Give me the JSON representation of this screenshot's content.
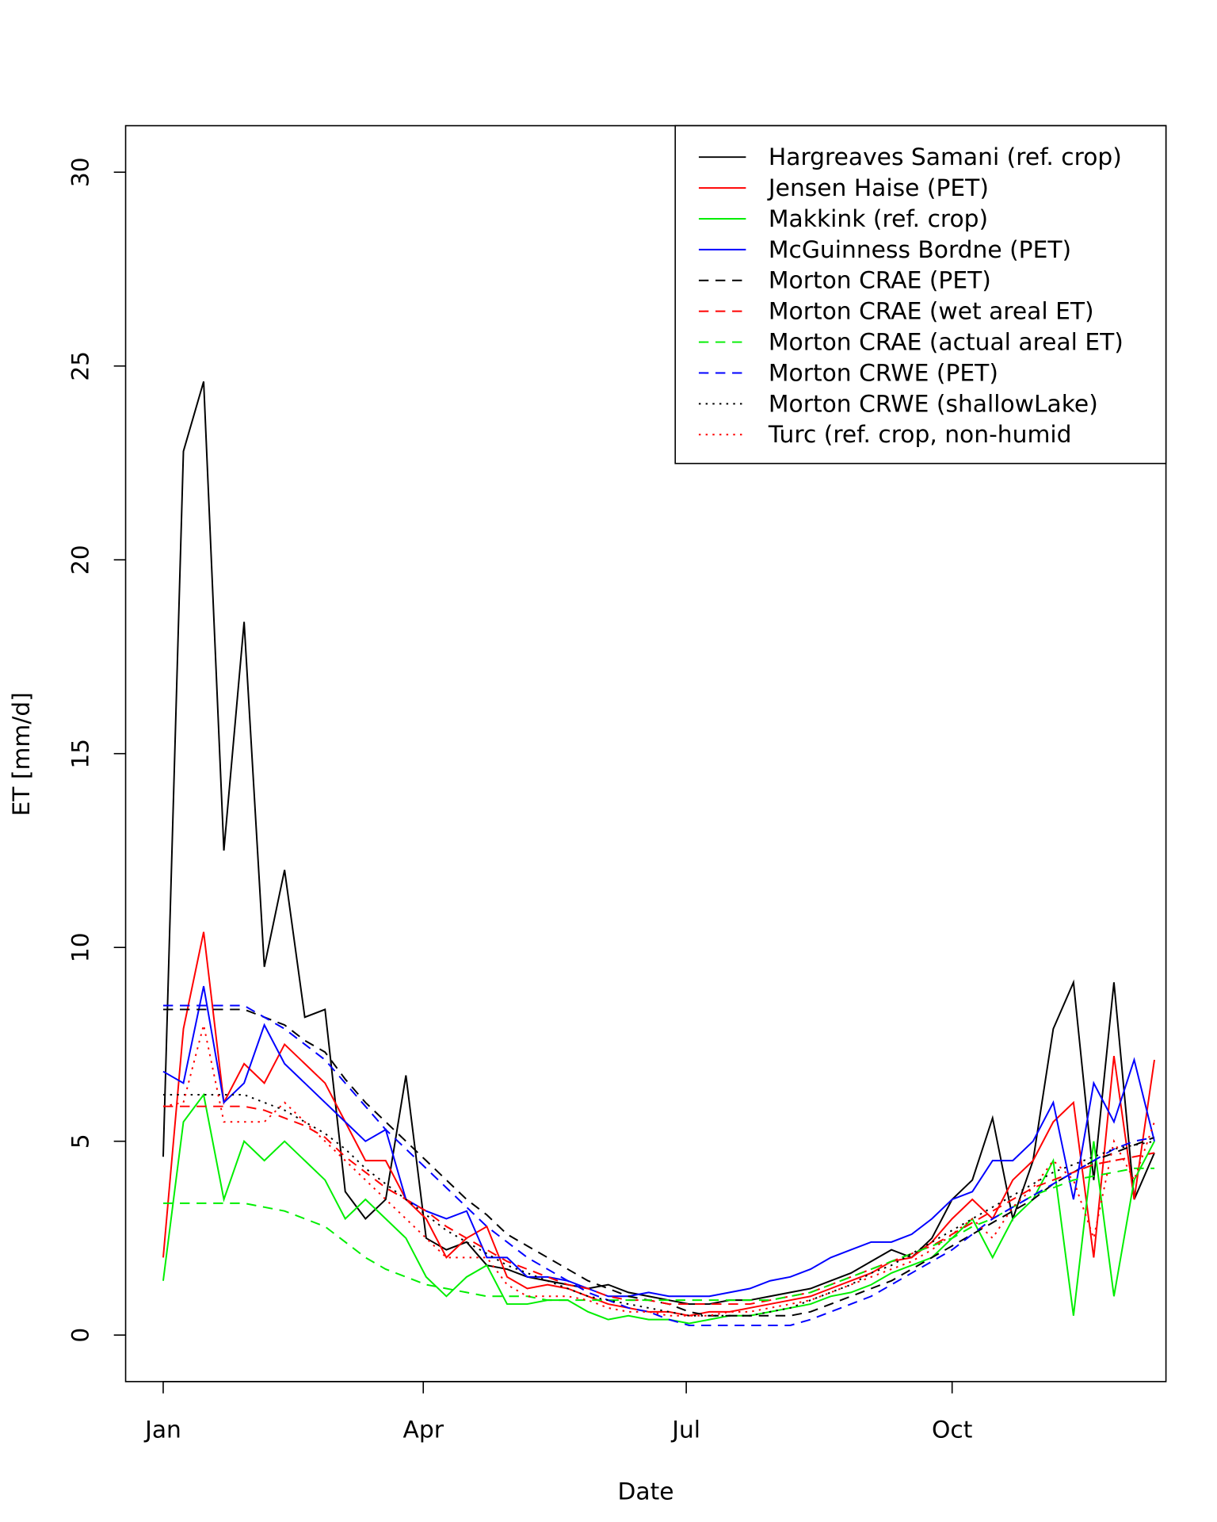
{
  "chart_data": {
    "type": "line",
    "x_label": "Date",
    "y_label": "ET [mm/d]",
    "x": [
      0,
      7,
      14,
      21,
      28,
      35,
      42,
      49,
      56,
      63,
      70,
      77,
      84,
      91,
      98,
      105,
      112,
      119,
      126,
      133,
      140,
      147,
      154,
      161,
      168,
      175,
      182,
      189,
      196,
      203,
      210,
      217,
      224,
      231,
      238,
      245,
      252,
      259,
      266,
      273,
      280,
      287,
      294,
      301,
      308,
      315,
      322,
      329,
      336,
      343
    ],
    "xlim": [
      -13,
      347
    ],
    "xticks": [
      {
        "value": 0,
        "label": "Jan"
      },
      {
        "value": 90,
        "label": "Apr"
      },
      {
        "value": 181,
        "label": "Jul"
      },
      {
        "value": 273,
        "label": "Oct"
      }
    ],
    "ylim": [
      -1.2,
      31.2
    ],
    "yticks": [
      0,
      5,
      10,
      15,
      20,
      25,
      30
    ],
    "legend_position": "topright",
    "series": [
      {
        "name": "Hargreaves Samani (ref. crop)",
        "color": "#000000",
        "dash": "solid",
        "values": [
          4.6,
          22.8,
          24.6,
          12.5,
          18.4,
          9.5,
          12.0,
          8.2,
          8.4,
          3.7,
          3.0,
          3.5,
          6.7,
          2.5,
          2.2,
          2.4,
          1.8,
          1.7,
          1.5,
          1.4,
          1.3,
          1.2,
          1.3,
          1.1,
          1.0,
          0.9,
          0.8,
          0.8,
          0.9,
          0.9,
          1.0,
          1.1,
          1.2,
          1.4,
          1.6,
          1.9,
          2.2,
          2.0,
          2.5,
          3.5,
          4.0,
          5.6,
          3.0,
          4.5,
          7.9,
          9.1,
          4.0,
          9.1,
          3.5,
          4.7
        ]
      },
      {
        "name": "Jensen Haise (PET)",
        "color": "#ff0000",
        "dash": "solid",
        "values": [
          2.0,
          7.9,
          10.4,
          6.0,
          7.0,
          6.5,
          7.5,
          7.0,
          6.5,
          5.5,
          4.5,
          4.5,
          3.5,
          3.0,
          2.0,
          2.5,
          2.8,
          1.5,
          1.2,
          1.3,
          1.2,
          1.0,
          0.8,
          0.7,
          0.6,
          0.6,
          0.5,
          0.6,
          0.6,
          0.7,
          0.8,
          0.9,
          1.0,
          1.2,
          1.4,
          1.6,
          1.9,
          2.0,
          2.4,
          3.0,
          3.5,
          3.0,
          4.0,
          4.5,
          5.5,
          6.0,
          2.0,
          7.2,
          3.5,
          7.1
        ]
      },
      {
        "name": "Makkink (ref. crop)",
        "color": "#00ee00",
        "dash": "solid",
        "values": [
          1.4,
          5.5,
          6.2,
          3.5,
          5.0,
          4.5,
          5.0,
          4.5,
          4.0,
          3.0,
          3.5,
          3.0,
          2.5,
          1.5,
          1.0,
          1.5,
          1.8,
          0.8,
          0.8,
          0.9,
          0.9,
          0.6,
          0.4,
          0.5,
          0.4,
          0.4,
          0.3,
          0.4,
          0.5,
          0.5,
          0.6,
          0.7,
          0.8,
          1.0,
          1.1,
          1.3,
          1.6,
          1.8,
          2.0,
          2.5,
          3.0,
          2.0,
          3.0,
          3.5,
          4.5,
          0.5,
          5.0,
          1.0,
          4.0,
          5.0
        ]
      },
      {
        "name": "McGuinness Bordne (PET)",
        "color": "#0000ff",
        "dash": "solid",
        "values": [
          6.8,
          6.5,
          9.0,
          6.0,
          6.5,
          8.0,
          7.0,
          6.5,
          6.0,
          5.5,
          5.0,
          5.3,
          3.5,
          3.2,
          3.0,
          3.2,
          2.0,
          2.0,
          1.5,
          1.5,
          1.4,
          1.2,
          1.0,
          1.0,
          1.1,
          1.0,
          1.0,
          1.0,
          1.1,
          1.2,
          1.4,
          1.5,
          1.7,
          2.0,
          2.2,
          2.4,
          2.4,
          2.6,
          3.0,
          3.5,
          3.7,
          4.5,
          4.5,
          5.0,
          6.0,
          3.5,
          6.5,
          5.5,
          7.1,
          5.0
        ]
      },
      {
        "name": "Morton CRAE (PET)",
        "color": "#000000",
        "dash": "dashed",
        "values": [
          8.4,
          8.4,
          8.4,
          8.4,
          8.4,
          8.2,
          8.0,
          7.6,
          7.3,
          6.6,
          6.0,
          5.5,
          5.0,
          4.5,
          4.0,
          3.5,
          3.1,
          2.6,
          2.3,
          2.0,
          1.7,
          1.4,
          1.2,
          1.0,
          0.9,
          0.8,
          0.6,
          0.5,
          0.5,
          0.5,
          0.5,
          0.5,
          0.6,
          0.8,
          1.0,
          1.2,
          1.4,
          1.7,
          2.0,
          2.3,
          2.6,
          2.9,
          3.2,
          3.5,
          3.9,
          4.2,
          4.5,
          4.7,
          4.9,
          5.1
        ]
      },
      {
        "name": "Morton CRAE (wet areal ET)",
        "color": "#ff0000",
        "dash": "dashed",
        "values": [
          5.9,
          5.9,
          5.9,
          5.9,
          5.9,
          5.8,
          5.6,
          5.4,
          5.1,
          4.6,
          4.2,
          3.8,
          3.5,
          3.2,
          2.8,
          2.5,
          2.2,
          1.9,
          1.7,
          1.5,
          1.3,
          1.2,
          1.0,
          0.9,
          0.9,
          0.8,
          0.8,
          0.8,
          0.8,
          0.8,
          0.9,
          1.0,
          1.1,
          1.3,
          1.5,
          1.7,
          1.9,
          2.1,
          2.3,
          2.6,
          2.9,
          3.2,
          3.5,
          3.8,
          4.0,
          4.2,
          4.4,
          4.5,
          4.6,
          4.7
        ]
      },
      {
        "name": "Morton CRAE (actual areal ET)",
        "color": "#00ee00",
        "dash": "dashed",
        "values": [
          3.4,
          3.4,
          3.4,
          3.4,
          3.4,
          3.3,
          3.2,
          3.0,
          2.8,
          2.4,
          2.0,
          1.7,
          1.5,
          1.3,
          1.2,
          1.1,
          1.0,
          1.0,
          1.0,
          0.9,
          0.9,
          0.9,
          0.9,
          0.9,
          0.9,
          0.9,
          0.9,
          0.9,
          0.9,
          0.9,
          0.9,
          1.0,
          1.1,
          1.3,
          1.5,
          1.7,
          1.9,
          2.1,
          2.3,
          2.5,
          2.8,
          3.0,
          3.3,
          3.6,
          3.8,
          4.0,
          4.1,
          4.2,
          4.3,
          4.3
        ]
      },
      {
        "name": "Morton CRWE (PET)",
        "color": "#0000ff",
        "dash": "dashed",
        "values": [
          8.5,
          8.5,
          8.5,
          8.5,
          8.5,
          8.2,
          7.9,
          7.5,
          7.1,
          6.5,
          5.9,
          5.3,
          4.8,
          4.3,
          3.8,
          3.3,
          2.8,
          2.4,
          2.0,
          1.7,
          1.4,
          1.1,
          0.9,
          0.7,
          0.6,
          0.4,
          0.25,
          0.25,
          0.25,
          0.25,
          0.25,
          0.25,
          0.4,
          0.6,
          0.8,
          1.0,
          1.3,
          1.6,
          1.9,
          2.2,
          2.6,
          3.0,
          3.3,
          3.6,
          3.9,
          4.2,
          4.5,
          4.8,
          5.0,
          5.1
        ]
      },
      {
        "name": "Morton CRWE (shallowLake)",
        "color": "#000000",
        "dash": "dotted",
        "values": [
          6.2,
          6.2,
          6.2,
          6.2,
          6.2,
          6.0,
          5.8,
          5.5,
          5.2,
          4.8,
          4.3,
          3.9,
          3.5,
          3.1,
          2.7,
          2.4,
          2.1,
          1.8,
          1.6,
          1.4,
          1.2,
          1.0,
          0.9,
          0.8,
          0.7,
          0.6,
          0.5,
          0.5,
          0.5,
          0.5,
          0.6,
          0.7,
          0.9,
          1.1,
          1.3,
          1.6,
          1.8,
          2.1,
          2.4,
          2.7,
          3.0,
          3.3,
          3.6,
          3.9,
          4.2,
          4.4,
          4.6,
          4.8,
          4.9,
          5.0
        ]
      },
      {
        "name": "Turc (ref. crop, non-humid",
        "color": "#ff0000",
        "dash": "dotted",
        "values": [
          5.9,
          6.0,
          8.0,
          5.5,
          5.5,
          5.5,
          6.0,
          5.5,
          5.0,
          4.5,
          4.0,
          3.5,
          3.0,
          2.5,
          2.0,
          2.0,
          2.0,
          1.3,
          1.0,
          1.0,
          1.0,
          0.9,
          0.7,
          0.6,
          0.6,
          0.5,
          0.5,
          0.5,
          0.6,
          0.6,
          0.7,
          0.8,
          0.9,
          1.1,
          1.3,
          1.5,
          1.7,
          1.9,
          2.2,
          2.6,
          3.0,
          2.5,
          3.3,
          3.8,
          4.5,
          4.0,
          2.5,
          5.0,
          4.0,
          5.5
        ]
      }
    ]
  }
}
